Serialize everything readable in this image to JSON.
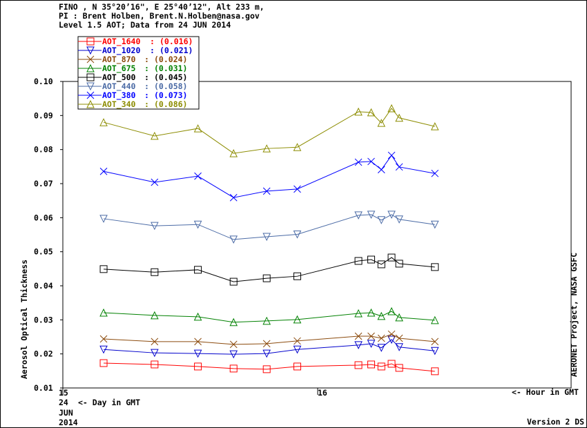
{
  "header": {
    "line1": "FINO , N 35°20’16\", E 25°40’12\", Alt 233 m,",
    "line2": "PI : Brent Holben, Brent.N.Holben@nasa.gov",
    "line3": "Level 1.5 AOT; Data from 24 JUN 2014"
  },
  "footer": {
    "day": "24",
    "day_label": "<- Day in GMT",
    "month": "JUN",
    "year": "2014",
    "hour_label": "<- Hour in GMT",
    "version": "Version 2 DS",
    "right_label": "AERONET Project, NASA GSFC"
  },
  "chart_data": {
    "type": "line",
    "ylabel": "Aerosol Optical Thickness",
    "xlabel": "Hour in GMT",
    "ylim": [
      0.01,
      0.1
    ],
    "xlim": [
      15,
      17
    ],
    "yticks": [
      "0.01",
      "0.02",
      "0.03",
      "0.04",
      "0.05",
      "0.06",
      "0.07",
      "0.08",
      "0.09",
      "0.10"
    ],
    "xticks": [
      {
        "value": 15,
        "label": "15"
      },
      {
        "value": 16,
        "label": "16"
      }
    ],
    "grid": false,
    "legend_position": "top-left",
    "x": [
      15.16,
      15.36,
      15.53,
      15.67,
      15.8,
      15.92,
      16.16,
      16.21,
      16.25,
      16.29,
      16.32,
      16.46
    ],
    "series": [
      {
        "name": "AOT_1640",
        "mean": "(0.016)",
        "color": "#ff0000",
        "marker": "square",
        "values": [
          0.0173,
          0.0169,
          0.0163,
          0.0157,
          0.0155,
          0.0163,
          0.0167,
          0.0169,
          0.0163,
          0.0171,
          0.0159,
          0.0149
        ]
      },
      {
        "name": "AOT_1020",
        "mean": "(0.021)",
        "color": "#0000cc",
        "marker": "triangle-down",
        "values": [
          0.0213,
          0.0203,
          0.0201,
          0.0199,
          0.0201,
          0.0213,
          0.0226,
          0.023,
          0.0218,
          0.0242,
          0.022,
          0.0209
        ]
      },
      {
        "name": "AOT_870",
        "mean": "(0.024)",
        "color": "#8b4a0c",
        "marker": "x",
        "values": [
          0.0244,
          0.0236,
          0.0236,
          0.0228,
          0.023,
          0.0238,
          0.0252,
          0.0252,
          0.0246,
          0.0258,
          0.0246,
          0.0236
        ]
      },
      {
        "name": "AOT_675",
        "mean": "(0.031)",
        "color": "#008000",
        "marker": "triangle-up",
        "values": [
          0.0321,
          0.0313,
          0.0309,
          0.0293,
          0.0297,
          0.0301,
          0.0319,
          0.0321,
          0.0311,
          0.0325,
          0.0307,
          0.0299
        ]
      },
      {
        "name": "AOT_500",
        "mean": "(0.045)",
        "color": "#000000",
        "marker": "square",
        "values": [
          0.0449,
          0.044,
          0.0447,
          0.0412,
          0.0422,
          0.0428,
          0.0473,
          0.0477,
          0.0463,
          0.0483,
          0.0465,
          0.0455
        ]
      },
      {
        "name": "AOT_440",
        "mean": "(0.058)",
        "color": "#4a6aa5",
        "marker": "triangle-down",
        "values": [
          0.0597,
          0.0576,
          0.058,
          0.0536,
          0.0544,
          0.0551,
          0.0607,
          0.0609,
          0.0593,
          0.0609,
          0.0595,
          0.058
        ]
      },
      {
        "name": "AOT_380",
        "mean": "(0.073)",
        "color": "#0000ff",
        "marker": "x",
        "values": [
          0.0736,
          0.0704,
          0.0722,
          0.0659,
          0.0678,
          0.0684,
          0.0763,
          0.0765,
          0.0741,
          0.0783,
          0.0749,
          0.073
        ]
      },
      {
        "name": "AOT_340",
        "mean": "(0.086)",
        "color": "#8c8c00",
        "marker": "triangle-up",
        "values": [
          0.088,
          0.084,
          0.0862,
          0.0789,
          0.0803,
          0.0807,
          0.0911,
          0.0909,
          0.0878,
          0.0921,
          0.0893,
          0.0868
        ]
      }
    ]
  }
}
